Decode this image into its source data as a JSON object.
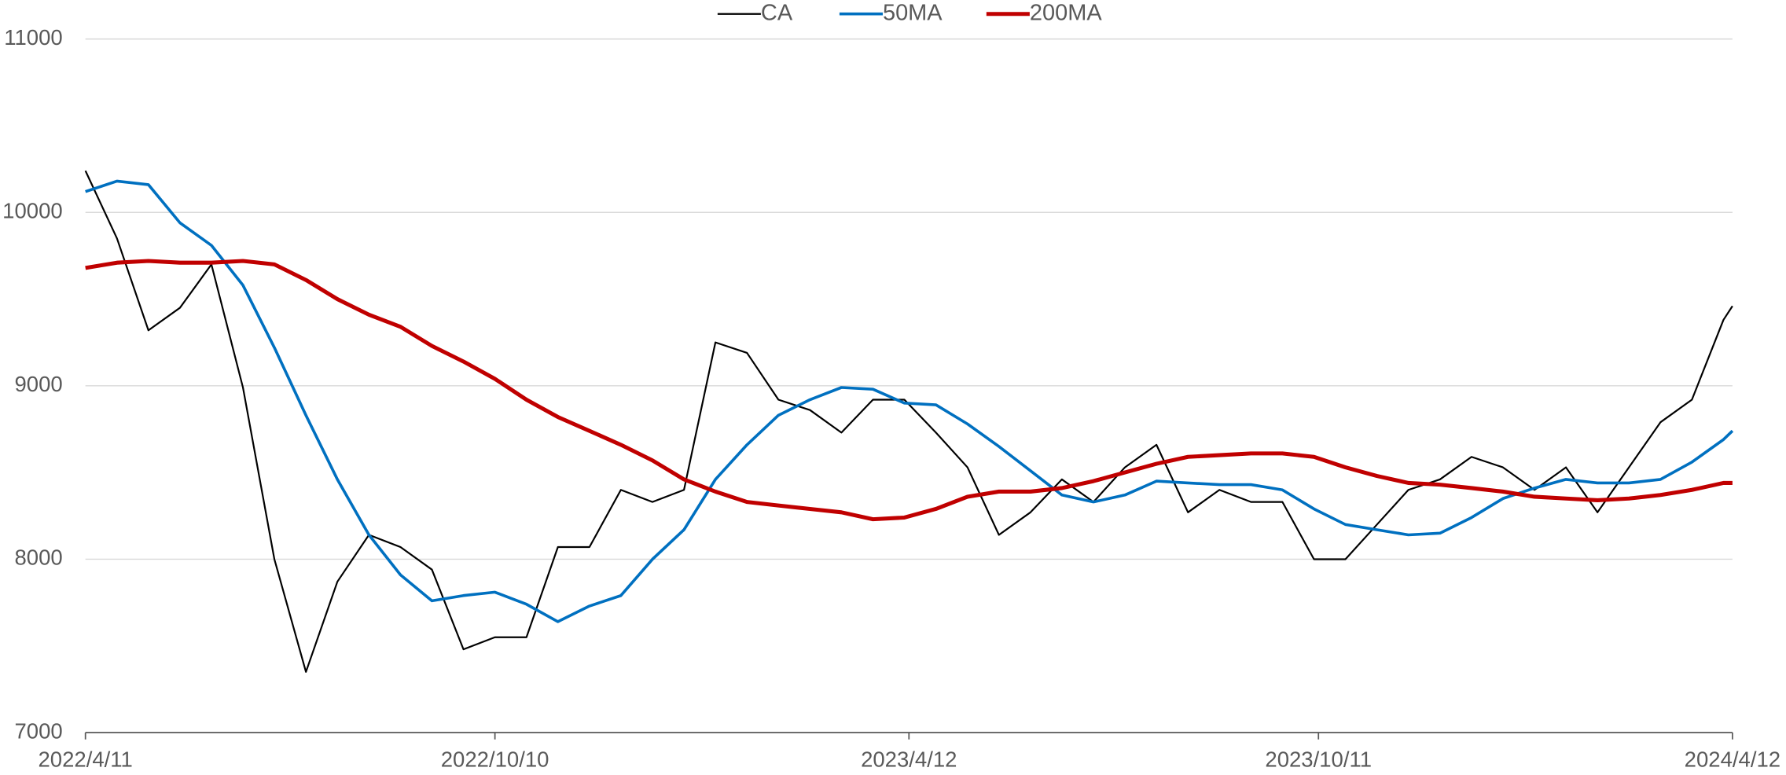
{
  "chart_data": {
    "type": "line",
    "x": [
      "2022/4/11",
      "2022/4/25",
      "2022/5/9",
      "2022/5/23",
      "2022/6/6",
      "2022/6/20",
      "2022/7/4",
      "2022/7/18",
      "2022/8/1",
      "2022/8/15",
      "2022/8/29",
      "2022/9/12",
      "2022/9/26",
      "2022/10/10",
      "2022/10/24",
      "2022/11/7",
      "2022/11/21",
      "2022/12/5",
      "2022/12/19",
      "2023/1/2",
      "2023/1/16",
      "2023/1/30",
      "2023/2/13",
      "2023/2/27",
      "2023/3/13",
      "2023/3/27",
      "2023/4/10",
      "2023/4/24",
      "2023/5/8",
      "2023/5/22",
      "2023/6/5",
      "2023/6/19",
      "2023/7/3",
      "2023/7/17",
      "2023/7/31",
      "2023/8/14",
      "2023/8/28",
      "2023/9/11",
      "2023/9/25",
      "2023/10/9",
      "2023/10/23",
      "2023/11/6",
      "2023/11/20",
      "2023/12/4",
      "2023/12/18",
      "2024/1/1",
      "2024/1/15",
      "2024/1/29",
      "2024/2/12",
      "2024/2/26",
      "2024/3/11",
      "2024/3/25",
      "2024/4/8",
      "2024/4/12"
    ],
    "series": [
      {
        "name": "CA",
        "color": "#000000",
        "width": 1.5,
        "values": [
          10240,
          9850,
          9320,
          9450,
          9700,
          8990,
          8000,
          7350,
          7870,
          8140,
          8070,
          7940,
          7480,
          7550,
          7550,
          8070,
          8070,
          8400,
          8330,
          8400,
          9250,
          9190,
          8920,
          8860,
          8730,
          8920,
          8920,
          8730,
          8530,
          8140,
          8270,
          8460,
          8330,
          8530,
          8660,
          8270,
          8400,
          8330,
          8330,
          8000,
          8000,
          8200,
          8400,
          8460,
          8590,
          8530,
          8400,
          8530,
          8270,
          8530,
          8790,
          8920,
          9380,
          9460
        ]
      },
      {
        "name": "50MA",
        "color": "#0070c0",
        "width": 2.5,
        "values": [
          10120,
          10180,
          10160,
          9940,
          9810,
          9580,
          9220,
          8830,
          8460,
          8140,
          7910,
          7760,
          7790,
          7810,
          7740,
          7640,
          7730,
          7790,
          8000,
          8170,
          8460,
          8660,
          8830,
          8920,
          8990,
          8980,
          8900,
          8890,
          8780,
          8650,
          8510,
          8370,
          8330,
          8370,
          8450,
          8440,
          8430,
          8430,
          8400,
          8290,
          8200,
          8170,
          8140,
          8150,
          8240,
          8350,
          8410,
          8460,
          8440,
          8440,
          8460,
          8560,
          8690,
          8740
        ]
      },
      {
        "name": "200MA",
        "color": "#c00000",
        "width": 3.5,
        "values": [
          9680,
          9710,
          9720,
          9710,
          9710,
          9720,
          9700,
          9610,
          9500,
          9410,
          9340,
          9230,
          9140,
          9040,
          8920,
          8820,
          8740,
          8660,
          8570,
          8460,
          8390,
          8330,
          8310,
          8290,
          8270,
          8230,
          8240,
          8290,
          8360,
          8390,
          8390,
          8410,
          8450,
          8500,
          8550,
          8590,
          8600,
          8610,
          8610,
          8590,
          8530,
          8480,
          8440,
          8430,
          8410,
          8390,
          8360,
          8350,
          8340,
          8350,
          8370,
          8400,
          8440,
          8440
        ]
      }
    ],
    "xlim": [
      "2022/4/11",
      "2024/4/12"
    ],
    "xticks": [
      "2022/4/11",
      "2022/10/10",
      "2023/4/12",
      "2023/10/11",
      "2024/4/12"
    ],
    "ylim": [
      7000,
      11000
    ],
    "yticks": [
      7000,
      8000,
      9000,
      10000,
      11000
    ],
    "grid": true,
    "legend": "top"
  }
}
